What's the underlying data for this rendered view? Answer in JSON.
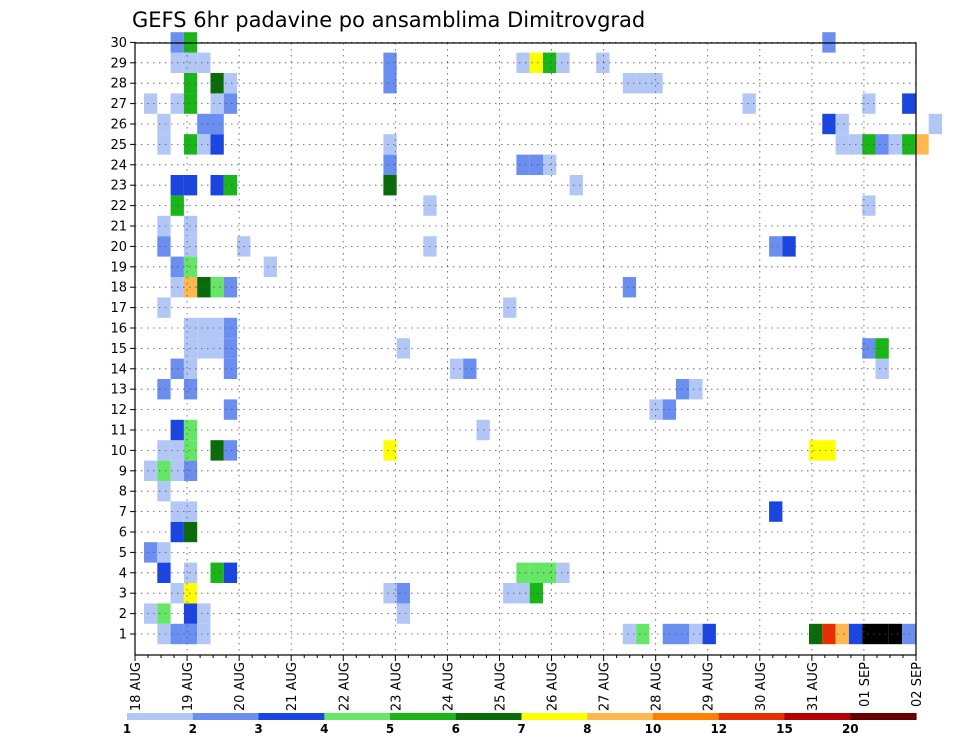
{
  "chart_data": {
    "type": "heatmap",
    "title": "GEFS 6hr padavine po ansamblima Dimitrovgrad",
    "xlabel": "",
    "ylabel": "",
    "x_ticks": [
      "18 AUG",
      "19 AUG",
      "20 AUG",
      "21 AUG",
      "22 AUG",
      "23 AUG",
      "24 AUG",
      "25 AUG",
      "26 AUG",
      "27 AUG",
      "28 AUG",
      "29 AUG",
      "30 AUG",
      "31 AUG",
      "01 SEP",
      "02 SEP"
    ],
    "y_ticks": [
      "1",
      "2",
      "3",
      "4",
      "5",
      "6",
      "7",
      "8",
      "9",
      "10",
      "11",
      "12",
      "13",
      "14",
      "15",
      "16",
      "17",
      "18",
      "19",
      "20",
      "21",
      "22",
      "23",
      "24",
      "25",
      "26",
      "27",
      "28",
      "29",
      "30"
    ],
    "x_range": [
      0,
      60
    ],
    "y_range": [
      0,
      30
    ],
    "x_unit": "6-hour steps from 18 AUG 00Z",
    "grid": true,
    "legend": "colorbar-bottom",
    "colorbar": {
      "labels": [
        "1",
        "2",
        "3",
        "4",
        "5",
        "6",
        "7",
        "8",
        "10",
        "12",
        "15",
        "20"
      ],
      "colors": [
        "#b3c7f7",
        "#6b8ff0",
        "#1a45e0",
        "#66e666",
        "#19b519",
        "#0a6b0a",
        "#ffff00",
        "#ffb84d",
        "#ff8000",
        "#e62e00",
        "#b30000",
        "#660000"
      ]
    },
    "cells": [
      {
        "m": 1,
        "t": 1,
        "v": 1
      },
      {
        "m": 1,
        "t": 2,
        "v": 2
      },
      {
        "m": 1,
        "t": 3,
        "v": 2
      },
      {
        "m": 1,
        "t": 4,
        "v": 1
      },
      {
        "m": 1,
        "t": 36,
        "v": 1
      },
      {
        "m": 1,
        "t": 37,
        "v": 4
      },
      {
        "m": 1,
        "t": 39,
        "v": 2
      },
      {
        "m": 1,
        "t": 40,
        "v": 2
      },
      {
        "m": 1,
        "t": 41,
        "v": 1
      },
      {
        "m": 1,
        "t": 42,
        "v": 3
      },
      {
        "m": 1,
        "t": 50,
        "v": 6
      },
      {
        "m": 1,
        "t": 51,
        "v": 10
      },
      {
        "m": 1,
        "t": 52,
        "v": 8
      },
      {
        "m": 1,
        "t": 53,
        "v": 3
      },
      {
        "m": 1,
        "t": 54,
        "v": 20
      },
      {
        "m": 1,
        "t": 55,
        "v": 20
      },
      {
        "m": 1,
        "t": 56,
        "v": 15
      },
      {
        "m": 1,
        "t": 57,
        "v": 2
      },
      {
        "m": 2,
        "t": 0,
        "v": 1
      },
      {
        "m": 2,
        "t": 1,
        "v": 4
      },
      {
        "m": 2,
        "t": 3,
        "v": 3
      },
      {
        "m": 2,
        "t": 4,
        "v": 1
      },
      {
        "m": 2,
        "t": 19,
        "v": 1
      },
      {
        "m": 3,
        "t": 2,
        "v": 1
      },
      {
        "m": 3,
        "t": 3,
        "v": 7
      },
      {
        "m": 3,
        "t": 18,
        "v": 1
      },
      {
        "m": 3,
        "t": 19,
        "v": 2
      },
      {
        "m": 3,
        "t": 27,
        "v": 1
      },
      {
        "m": 3,
        "t": 28,
        "v": 1
      },
      {
        "m": 3,
        "t": 29,
        "v": 5
      },
      {
        "m": 4,
        "t": 1,
        "v": 3
      },
      {
        "m": 4,
        "t": 3,
        "v": 1
      },
      {
        "m": 4,
        "t": 5,
        "v": 5
      },
      {
        "m": 4,
        "t": 6,
        "v": 3
      },
      {
        "m": 4,
        "t": 28,
        "v": 4
      },
      {
        "m": 4,
        "t": 29,
        "v": 4
      },
      {
        "m": 4,
        "t": 30,
        "v": 4
      },
      {
        "m": 4,
        "t": 31,
        "v": 1
      },
      {
        "m": 5,
        "t": 0,
        "v": 2
      },
      {
        "m": 5,
        "t": 1,
        "v": 1
      },
      {
        "m": 6,
        "t": 2,
        "v": 3
      },
      {
        "m": 6,
        "t": 3,
        "v": 6
      },
      {
        "m": 7,
        "t": 2,
        "v": 1
      },
      {
        "m": 7,
        "t": 3,
        "v": 1
      },
      {
        "m": 7,
        "t": 47,
        "v": 3
      },
      {
        "m": 8,
        "t": 1,
        "v": 1
      },
      {
        "m": 9,
        "t": 0,
        "v": 1
      },
      {
        "m": 9,
        "t": 1,
        "v": 4
      },
      {
        "m": 9,
        "t": 2,
        "v": 1
      },
      {
        "m": 9,
        "t": 3,
        "v": 2
      },
      {
        "m": 10,
        "t": 1,
        "v": 1
      },
      {
        "m": 10,
        "t": 2,
        "v": 1
      },
      {
        "m": 10,
        "t": 3,
        "v": 4
      },
      {
        "m": 10,
        "t": 5,
        "v": 6
      },
      {
        "m": 10,
        "t": 6,
        "v": 2
      },
      {
        "m": 10,
        "t": 18,
        "v": 7
      },
      {
        "m": 10,
        "t": 50,
        "v": 7
      },
      {
        "m": 10,
        "t": 51,
        "v": 7
      },
      {
        "m": 11,
        "t": 2,
        "v": 3
      },
      {
        "m": 11,
        "t": 3,
        "v": 4
      },
      {
        "m": 11,
        "t": 25,
        "v": 1
      },
      {
        "m": 12,
        "t": 6,
        "v": 2
      },
      {
        "m": 12,
        "t": 38,
        "v": 1
      },
      {
        "m": 12,
        "t": 39,
        "v": 2
      },
      {
        "m": 13,
        "t": 1,
        "v": 2
      },
      {
        "m": 13,
        "t": 3,
        "v": 2
      },
      {
        "m": 13,
        "t": 40,
        "v": 2
      },
      {
        "m": 13,
        "t": 41,
        "v": 1
      },
      {
        "m": 14,
        "t": 2,
        "v": 2
      },
      {
        "m": 14,
        "t": 3,
        "v": 1
      },
      {
        "m": 14,
        "t": 6,
        "v": 2
      },
      {
        "m": 14,
        "t": 23,
        "v": 1
      },
      {
        "m": 14,
        "t": 24,
        "v": 2
      },
      {
        "m": 14,
        "t": 55,
        "v": 1
      },
      {
        "m": 15,
        "t": 3,
        "v": 1
      },
      {
        "m": 15,
        "t": 4,
        "v": 1
      },
      {
        "m": 15,
        "t": 5,
        "v": 1
      },
      {
        "m": 15,
        "t": 6,
        "v": 2
      },
      {
        "m": 15,
        "t": 19,
        "v": 1
      },
      {
        "m": 15,
        "t": 54,
        "v": 2
      },
      {
        "m": 15,
        "t": 55,
        "v": 5
      },
      {
        "m": 16,
        "t": 3,
        "v": 1
      },
      {
        "m": 16,
        "t": 4,
        "v": 1
      },
      {
        "m": 16,
        "t": 5,
        "v": 1
      },
      {
        "m": 16,
        "t": 6,
        "v": 2
      },
      {
        "m": 17,
        "t": 1,
        "v": 1
      },
      {
        "m": 17,
        "t": 27,
        "v": 1
      },
      {
        "m": 18,
        "t": 2,
        "v": 1
      },
      {
        "m": 18,
        "t": 3,
        "v": 8
      },
      {
        "m": 18,
        "t": 4,
        "v": 6
      },
      {
        "m": 18,
        "t": 5,
        "v": 4
      },
      {
        "m": 18,
        "t": 6,
        "v": 2
      },
      {
        "m": 18,
        "t": 36,
        "v": 2
      },
      {
        "m": 19,
        "t": 2,
        "v": 2
      },
      {
        "m": 19,
        "t": 3,
        "v": 4
      },
      {
        "m": 19,
        "t": 9,
        "v": 1
      },
      {
        "m": 20,
        "t": 1,
        "v": 2
      },
      {
        "m": 20,
        "t": 3,
        "v": 1
      },
      {
        "m": 20,
        "t": 7,
        "v": 1
      },
      {
        "m": 20,
        "t": 21,
        "v": 1
      },
      {
        "m": 20,
        "t": 47,
        "v": 2
      },
      {
        "m": 20,
        "t": 48,
        "v": 3
      },
      {
        "m": 21,
        "t": 1,
        "v": 1
      },
      {
        "m": 21,
        "t": 3,
        "v": 1
      },
      {
        "m": 22,
        "t": 2,
        "v": 5
      },
      {
        "m": 22,
        "t": 21,
        "v": 1
      },
      {
        "m": 22,
        "t": 54,
        "v": 1
      },
      {
        "m": 23,
        "t": 2,
        "v": 3
      },
      {
        "m": 23,
        "t": 3,
        "v": 3
      },
      {
        "m": 23,
        "t": 5,
        "v": 3
      },
      {
        "m": 23,
        "t": 6,
        "v": 5
      },
      {
        "m": 23,
        "t": 18,
        "v": 6
      },
      {
        "m": 23,
        "t": 32,
        "v": 1
      },
      {
        "m": 24,
        "t": 18,
        "v": 2
      },
      {
        "m": 24,
        "t": 28,
        "v": 2
      },
      {
        "m": 24,
        "t": 29,
        "v": 2
      },
      {
        "m": 24,
        "t": 30,
        "v": 1
      },
      {
        "m": 25,
        "t": 1,
        "v": 1
      },
      {
        "m": 25,
        "t": 3,
        "v": 5
      },
      {
        "m": 25,
        "t": 4,
        "v": 1
      },
      {
        "m": 25,
        "t": 5,
        "v": 3
      },
      {
        "m": 25,
        "t": 18,
        "v": 1
      },
      {
        "m": 25,
        "t": 52,
        "v": 1
      },
      {
        "m": 25,
        "t": 53,
        "v": 1
      },
      {
        "m": 25,
        "t": 54,
        "v": 5
      },
      {
        "m": 25,
        "t": 55,
        "v": 2
      },
      {
        "m": 25,
        "t": 56,
        "v": 1
      },
      {
        "m": 25,
        "t": 57,
        "v": 5
      },
      {
        "m": 25,
        "t": 58,
        "v": 8
      },
      {
        "m": 26,
        "t": 1,
        "v": 1
      },
      {
        "m": 26,
        "t": 4,
        "v": 2
      },
      {
        "m": 26,
        "t": 5,
        "v": 2
      },
      {
        "m": 26,
        "t": 51,
        "v": 3
      },
      {
        "m": 26,
        "t": 52,
        "v": 1
      },
      {
        "m": 26,
        "t": 59,
        "v": 1
      },
      {
        "m": 27,
        "t": 0,
        "v": 1
      },
      {
        "m": 27,
        "t": 2,
        "v": 1
      },
      {
        "m": 27,
        "t": 3,
        "v": 5
      },
      {
        "m": 27,
        "t": 5,
        "v": 1
      },
      {
        "m": 27,
        "t": 6,
        "v": 2
      },
      {
        "m": 27,
        "t": 45,
        "v": 1
      },
      {
        "m": 27,
        "t": 54,
        "v": 1
      },
      {
        "m": 27,
        "t": 57,
        "v": 3
      },
      {
        "m": 28,
        "t": 3,
        "v": 5
      },
      {
        "m": 28,
        "t": 5,
        "v": 6
      },
      {
        "m": 28,
        "t": 6,
        "v": 1
      },
      {
        "m": 28,
        "t": 18,
        "v": 2
      },
      {
        "m": 28,
        "t": 36,
        "v": 1
      },
      {
        "m": 28,
        "t": 37,
        "v": 1
      },
      {
        "m": 28,
        "t": 38,
        "v": 1
      },
      {
        "m": 29,
        "t": 2,
        "v": 1
      },
      {
        "m": 29,
        "t": 3,
        "v": 1
      },
      {
        "m": 29,
        "t": 4,
        "v": 1
      },
      {
        "m": 29,
        "t": 18,
        "v": 2
      },
      {
        "m": 29,
        "t": 28,
        "v": 1
      },
      {
        "m": 29,
        "t": 29,
        "v": 7
      },
      {
        "m": 29,
        "t": 30,
        "v": 5
      },
      {
        "m": 29,
        "t": 31,
        "v": 1
      },
      {
        "m": 29,
        "t": 34,
        "v": 1
      },
      {
        "m": 30,
        "t": 2,
        "v": 2
      },
      {
        "m": 30,
        "t": 3,
        "v": 5
      },
      {
        "m": 30,
        "t": 51,
        "v": 2
      }
    ]
  }
}
